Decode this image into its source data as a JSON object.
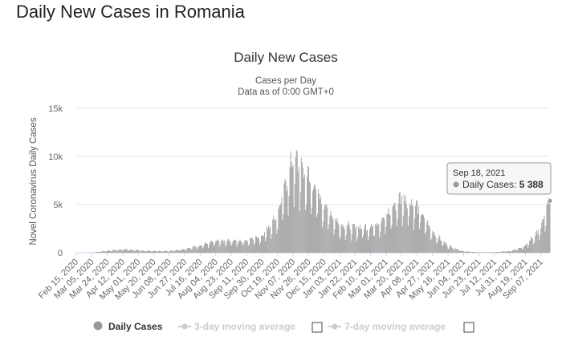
{
  "page": {
    "title": "Daily New Cases in Romania"
  },
  "chart_data": {
    "type": "bar",
    "title": "Daily New Cases",
    "subtitle_lines": [
      "Cases per Day",
      "Data as of 0:00 GMT+0"
    ],
    "ylabel": "Novel Coronavirus Daily Cases",
    "xlabel": "",
    "ylim": [
      0,
      15000
    ],
    "yticks": [
      0,
      5000,
      10000,
      15000
    ],
    "ytick_labels": [
      "0",
      "5k",
      "10k",
      "15k"
    ],
    "grid": true,
    "x_start": "Feb 15, 2020",
    "x_end": "Sep 18, 2021",
    "x_tick_labels": [
      "Feb 15, 2020",
      "Mar 05, 2020",
      "Mar 24, 2020",
      "Apr 12, 2020",
      "May 01, 2020",
      "May 20, 2020",
      "Jun 08, 2020",
      "Jun 27, 2020",
      "Jul 16, 2020",
      "Aug 04, 2020",
      "Aug 23, 2020",
      "Sep 11, 2020",
      "Sep 30, 2020",
      "Oct 19, 2020",
      "Nov 07, 2020",
      "Nov 26, 2020",
      "Dec 15, 2020",
      "Jan 03, 2021",
      "Jan 22, 2021",
      "Feb 10, 2021",
      "Mar 01, 2021",
      "Mar 20, 2021",
      "Apr 08, 2021",
      "Apr 27, 2021",
      "May 16, 2021",
      "Jun 04, 2021",
      "Jun 23, 2021",
      "Jul 12, 2021",
      "Jul 31, 2021",
      "Aug 19, 2021",
      "Sep 07, 2021"
    ],
    "series": [
      {
        "name": "Daily Cases",
        "color": "#999999",
        "keypoints": [
          {
            "date": "Feb 15, 2020",
            "value": 0
          },
          {
            "date": "Mar 05, 2020",
            "value": 10
          },
          {
            "date": "Mar 24, 2020",
            "value": 200
          },
          {
            "date": "Apr 12, 2020",
            "value": 350
          },
          {
            "date": "May 01, 2020",
            "value": 250
          },
          {
            "date": "May 20, 2020",
            "value": 170
          },
          {
            "date": "Jun 08, 2020",
            "value": 180
          },
          {
            "date": "Jun 27, 2020",
            "value": 380
          },
          {
            "date": "Jul 16, 2020",
            "value": 750
          },
          {
            "date": "Aug 04, 2020",
            "value": 1150
          },
          {
            "date": "Aug 23, 2020",
            "value": 1200
          },
          {
            "date": "Sep 11, 2020",
            "value": 1250
          },
          {
            "date": "Sep 30, 2020",
            "value": 1700
          },
          {
            "date": "Oct 19, 2020",
            "value": 3800
          },
          {
            "date": "Nov 07, 2020",
            "value": 9500
          },
          {
            "date": "Nov 26, 2020",
            "value": 7500
          },
          {
            "date": "Dec 15, 2020",
            "value": 4800
          },
          {
            "date": "Jan 03, 2021",
            "value": 2800
          },
          {
            "date": "Jan 22, 2021",
            "value": 2500
          },
          {
            "date": "Feb 10, 2021",
            "value": 2600
          },
          {
            "date": "Mar 01, 2021",
            "value": 3600
          },
          {
            "date": "Mar 20, 2021",
            "value": 5600
          },
          {
            "date": "Apr 08, 2021",
            "value": 4600
          },
          {
            "date": "Apr 27, 2021",
            "value": 2100
          },
          {
            "date": "May 16, 2021",
            "value": 700
          },
          {
            "date": "Jun 04, 2021",
            "value": 150
          },
          {
            "date": "Jun 23, 2021",
            "value": 40
          },
          {
            "date": "Jul 12, 2021",
            "value": 60
          },
          {
            "date": "Jul 31, 2021",
            "value": 180
          },
          {
            "date": "Aug 19, 2021",
            "value": 700
          },
          {
            "date": "Sep 07, 2021",
            "value": 2500
          },
          {
            "date": "Sep 18, 2021",
            "value": 5388
          }
        ]
      },
      {
        "name": "3-day moving average",
        "visible": false
      },
      {
        "name": "7-day moving average",
        "visible": false
      }
    ],
    "tooltip": {
      "date": "Sep 18, 2021",
      "series": "Daily Cases",
      "value": "5 388"
    },
    "legend": {
      "placement": "bottom"
    }
  }
}
